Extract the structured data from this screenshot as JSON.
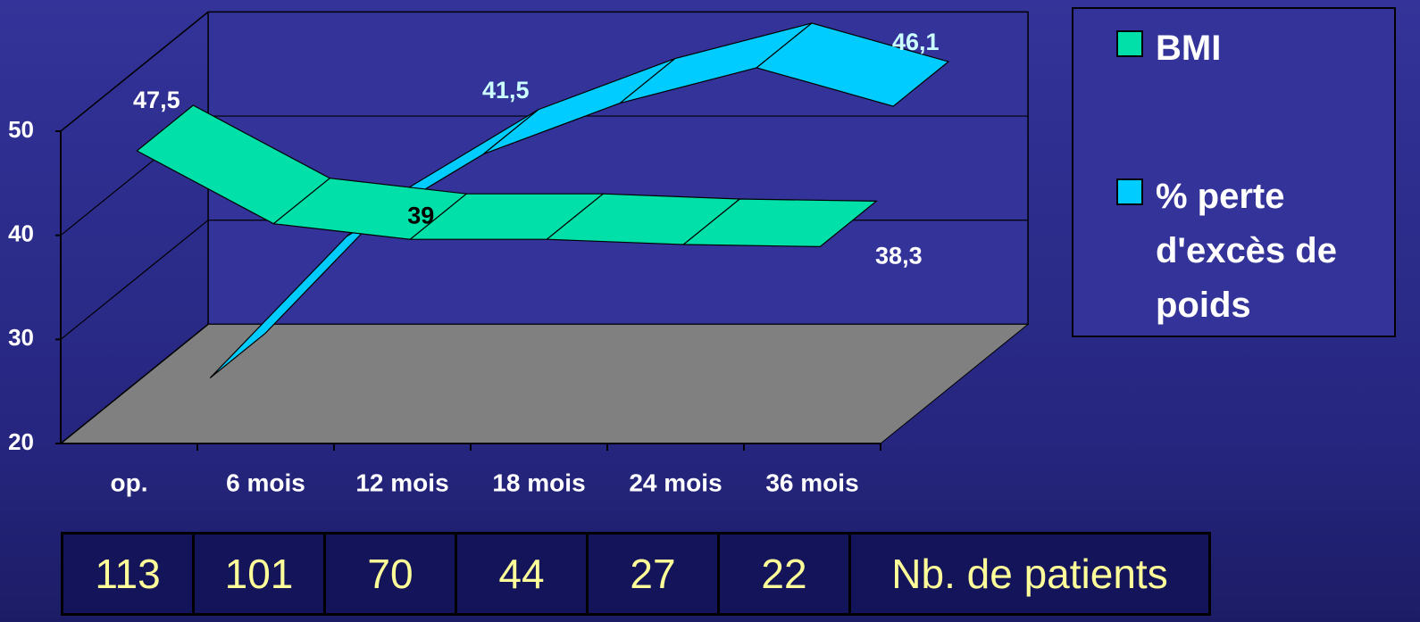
{
  "chart_data": {
    "type": "ribbon3d",
    "categories": [
      "op.",
      "6 mois",
      "12 mois",
      "18 mois",
      "24 mois",
      "36 mois"
    ],
    "series": [
      {
        "name": "BMI",
        "color": "#00e0a8",
        "values": [
          47.5,
          40.5,
          39,
          39,
          38.5,
          38.3
        ],
        "value_labels": [
          "47,5",
          null,
          "39",
          null,
          null,
          "38,3"
        ]
      },
      {
        "name": "% perte d'excès de poids",
        "color": "#00ccff",
        "values": [
          20,
          33.6,
          41.5,
          46.4,
          49.8,
          46.1
        ],
        "value_labels": [
          null,
          null,
          "41,5",
          null,
          null,
          "46,1"
        ]
      }
    ],
    "ylim": [
      20,
      50
    ],
    "yticks": [
      20,
      30,
      40,
      50
    ],
    "grid": true,
    "legend": "right",
    "patients": {
      "label": "Nb. de patients",
      "values": [
        113,
        101,
        70,
        44,
        27,
        22
      ]
    }
  }
}
